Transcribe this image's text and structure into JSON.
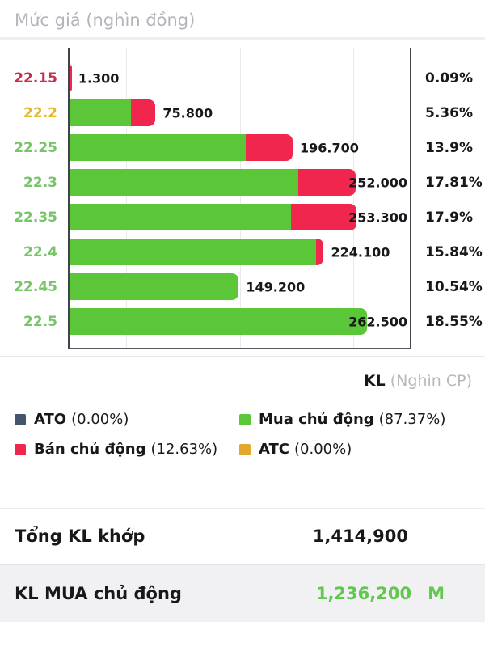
{
  "header": {
    "title": "Mức giá (nghìn đồng)"
  },
  "chart_data": {
    "type": "bar",
    "orientation": "horizontal",
    "title": "Mức giá (nghìn đồng)",
    "xlabel": "KL (Nghìn CP)",
    "ylabel": "Mức giá",
    "x_max": 300000,
    "gridline_step": 50000,
    "grid": true,
    "series_colors": {
      "buy": "#5cc639",
      "sell": "#f1264e"
    },
    "price_colors": {
      "down": "#c62e4c",
      "reference": "#e3ba2e",
      "up": "#78c469"
    },
    "rows": [
      {
        "price": "22.15",
        "price_state": "down",
        "total": 1300,
        "buy": 0,
        "sell": 1300,
        "value_label": "1.300",
        "percent": "0.09%"
      },
      {
        "price": "22.2",
        "price_state": "reference",
        "total": 75800,
        "buy": 54400,
        "sell": 21400,
        "value_label": "75.800",
        "percent": "5.36%"
      },
      {
        "price": "22.25",
        "price_state": "up",
        "total": 196700,
        "buy": 155700,
        "sell": 41000,
        "value_label": "196.700",
        "percent": "13.9%"
      },
      {
        "price": "22.3",
        "price_state": "up",
        "total": 252000,
        "buy": 202000,
        "sell": 50000,
        "value_label": "252.000",
        "percent": "17.81%"
      },
      {
        "price": "22.35",
        "price_state": "up",
        "total": 253300,
        "buy": 195300,
        "sell": 58000,
        "value_label": "253.300",
        "percent": "17.9%"
      },
      {
        "price": "22.4",
        "price_state": "up",
        "total": 224100,
        "buy": 217100,
        "sell": 7000,
        "value_label": "224.100",
        "percent": "15.84%"
      },
      {
        "price": "22.45",
        "price_state": "up",
        "total": 149200,
        "buy": 149200,
        "sell": 0,
        "value_label": "149.200",
        "percent": "10.54%"
      },
      {
        "price": "22.5",
        "price_state": "up",
        "total": 262500,
        "buy": 262500,
        "sell": 0,
        "value_label": "262.500",
        "percent": "18.55%"
      }
    ]
  },
  "axis_note": {
    "bold": "KL",
    "muted": "(Nghìn CP)"
  },
  "legend": {
    "items": [
      {
        "name": "ATO",
        "percent": "(0.00%)",
        "color": "#44566b"
      },
      {
        "name": "Mua chủ động",
        "percent": "(87.37%)",
        "color": "#5cc639"
      },
      {
        "name": "Bán chủ động",
        "percent": "(12.63%)",
        "color": "#f1264e"
      },
      {
        "name": "ATC",
        "percent": "(0.00%)",
        "color": "#e2a82d"
      }
    ]
  },
  "totals": {
    "matched_label": "Tổng KL khớp",
    "matched_value": "1,414,900",
    "buy_label": "KL MUA chủ động",
    "buy_value": "1,236,200",
    "buy_badge": "M"
  }
}
